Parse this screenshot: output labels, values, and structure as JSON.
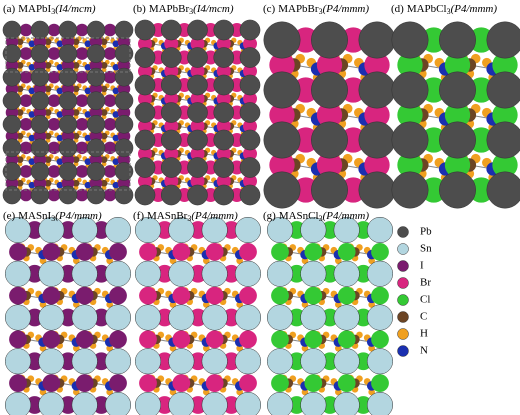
{
  "panels": [
    {
      "label": "(a)",
      "formula": "MAPbI",
      "subscript": "3",
      "space_group": "(I4/mcm)"
    },
    {
      "label": "(b)",
      "formula": "MAPbBr",
      "subscript": "3",
      "space_group": "(I4/mcm)"
    },
    {
      "label": "(c)",
      "formula": "MAPbBr",
      "subscript": "3",
      "space_group": "(P4/mmm)"
    },
    {
      "label": "(d)",
      "formula": "MAPbCl",
      "subscript": "3",
      "space_group": "(P4/mmm)"
    },
    {
      "label": "(e)",
      "formula": "MASnI",
      "subscript": "3",
      "space_group": "(P4/mmm)"
    },
    {
      "label": "(f)",
      "formula": "MASnBr",
      "subscript": "3",
      "space_group": "(P4/mmm)"
    },
    {
      "label": "(g)",
      "formula": "MASnCl",
      "subscript": "3",
      "space_group": "(P4/mmm)"
    }
  ],
  "legend": [
    {
      "label": "Pb",
      "color": "#4d4d4d"
    },
    {
      "label": "Sn",
      "color": "#b3d6e0"
    },
    {
      "label": "I",
      "color": "#7a1c6e"
    },
    {
      "label": "Br",
      "color": "#d8257f"
    },
    {
      "label": "Cl",
      "color": "#34c934"
    },
    {
      "label": "C",
      "color": "#6b4424"
    },
    {
      "label": "H",
      "color": "#f0a020"
    },
    {
      "label": "N",
      "color": "#1a2fb0"
    }
  ]
}
